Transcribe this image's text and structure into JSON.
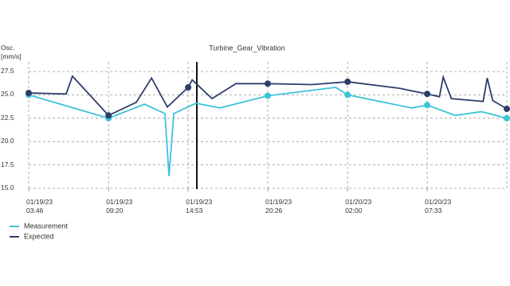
{
  "chart_data": {
    "type": "line",
    "title": "Turbine_Gear_Vibration",
    "y_label": "Osc. [mm/s]",
    "xlim": [
      "01/19/23 03:46",
      "01/20/23 13:06"
    ],
    "xticks": [
      "01/19/23 03:46",
      "01/19/23 09:20",
      "01/19/23 14:53",
      "01/19/23 20:26",
      "01/20/23 02:00",
      "01/20/23 07:33"
    ],
    "ylim": [
      15,
      27.5
    ],
    "yticks": [
      {
        "value": 15,
        "label": "15.0"
      },
      17.5,
      {
        "value": 20,
        "label": "20.0"
      },
      22.5,
      {
        "value": 25,
        "label": "25.0"
      },
      27.5
    ],
    "grid": true,
    "legend": "bottom-left",
    "series": [
      {
        "name": "Measurement",
        "color": "#3cc3d9",
        "x": [
          "01/19/23 03:46",
          "01/19/23 09:20",
          "01/19/23 11:50",
          "01/19/23 13:16",
          "01/19/23 13:33",
          "01/19/23 13:53",
          "01/19/23 15:26",
          "01/19/23 17:06",
          "01/19/23 20:26",
          "01/20/23 01:10",
          "01/20/23 02:00",
          "01/20/23 06:27",
          "01/20/23 07:33",
          "01/20/23 09:30",
          "01/20/23 11:20",
          "01/20/23 13:06"
        ],
        "values": [
          25.0,
          22.5,
          24.0,
          23.0,
          16.3,
          23.0,
          24.1,
          23.6,
          24.9,
          25.8,
          25.0,
          23.6,
          23.9,
          22.8,
          23.2,
          22.5
        ]
      },
      {
        "name": "Expected",
        "color": "#2d3e6b",
        "x": [
          "01/19/23 03:46",
          "01/19/23 06:23",
          "01/19/23 06:49",
          "01/19/23 09:20",
          "01/19/23 11:16",
          "01/19/23 12:20",
          "01/19/23 13:26",
          "01/19/23 14:53",
          "01/19/23 15:10",
          "01/19/23 16:33",
          "01/19/23 18:13",
          "01/19/23 20:26",
          "01/19/23 23:30",
          "01/20/23 02:00",
          "01/20/23 05:37",
          "01/20/23 07:33",
          "01/20/23 08:24",
          "01/20/23 08:40",
          "01/20/23 09:14",
          "01/20/23 11:27",
          "01/20/23 11:44",
          "01/20/23 12:07",
          "01/20/23 13:06"
        ],
        "values": [
          25.2,
          25.1,
          27.0,
          22.8,
          24.2,
          26.8,
          23.7,
          25.8,
          26.6,
          24.6,
          26.2,
          26.2,
          26.1,
          26.4,
          25.7,
          25.1,
          24.8,
          26.9,
          24.6,
          24.3,
          26.8,
          24.4,
          23.5
        ]
      }
    ]
  }
}
